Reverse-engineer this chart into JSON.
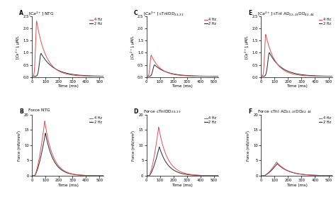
{
  "panels": {
    "A": {
      "label": "A",
      "title_ca": true,
      "title_suffix": " NTG",
      "title_full": "NTG",
      "ylabel_ca": true,
      "xlabel": "Time (ms)",
      "ylim": [
        0,
        2.5
      ],
      "xlim": [
        0,
        530
      ],
      "yticks": [
        0.0,
        0.5,
        1.0,
        1.5,
        2.0,
        2.5
      ],
      "xticks": [
        0,
        100,
        200,
        300,
        400,
        500
      ],
      "ca4hz_peak": 2.3,
      "ca4hz_peak_t": 35,
      "ca4hz_rise": 8,
      "ca4hz_decay": 70,
      "ca2hz_peak": 0.97,
      "ca2hz_peak_t": 68,
      "ca2hz_rise": 12,
      "ca2hz_decay": 95
    },
    "B": {
      "label": "B",
      "title_full": "Force NTG",
      "ylabel_force": true,
      "xlabel": "Time (ms)",
      "ylim": [
        0,
        20
      ],
      "xlim": [
        0,
        530
      ],
      "yticks": [
        0,
        5,
        10,
        15,
        20
      ],
      "xticks": [
        0,
        100,
        200,
        300,
        400,
        500
      ],
      "f4hz_peak": 18.0,
      "f4hz_peak_t": 95,
      "f4hz_rise": 55,
      "f4hz_decay": 60,
      "f2hz_peak": 14.0,
      "f2hz_peak_t": 100,
      "f2hz_rise": 55,
      "f2hz_decay": 60
    },
    "C": {
      "label": "C",
      "title_ca": true,
      "title_suffix": " cTnIDD",
      "title_sub": "22,23",
      "title_full": "cTnIDD",
      "ylabel_ca": true,
      "xlabel": "Time (ms)",
      "ylim": [
        0,
        2.5
      ],
      "xlim": [
        0,
        530
      ],
      "yticks": [
        0.0,
        0.5,
        1.0,
        1.5,
        2.0,
        2.5
      ],
      "xticks": [
        0,
        100,
        200,
        300,
        400,
        500
      ],
      "ca4hz_peak": 0.9,
      "ca4hz_peak_t": 35,
      "ca4hz_rise": 8,
      "ca4hz_decay": 70,
      "ca2hz_peak": 0.5,
      "ca2hz_peak_t": 60,
      "ca2hz_rise": 12,
      "ca2hz_decay": 90
    },
    "D": {
      "label": "D",
      "title_full": "Force cTnIDD",
      "title_sub": "22,23",
      "ylabel_force": true,
      "xlabel": "Time (ms)",
      "ylim": [
        0,
        20
      ],
      "xlim": [
        0,
        530
      ],
      "yticks": [
        0,
        5,
        10,
        15,
        20
      ],
      "xticks": [
        0,
        100,
        200,
        300,
        400,
        500
      ],
      "f4hz_peak": 16.0,
      "f4hz_peak_t": 90,
      "f4hz_rise": 55,
      "f4hz_decay": 65,
      "f2hz_peak": 9.5,
      "f2hz_peak_t": 95,
      "f2hz_rise": 55,
      "f2hz_decay": 65
    },
    "E": {
      "label": "E",
      "title_ca": true,
      "title_suffix": " cTnI AD",
      "title_sub1": "22,23",
      "title_mid": "DD",
      "title_sub2": "42,44",
      "title_full": "cTnI AD",
      "ylabel_ca": true,
      "xlabel": "Time (ms)",
      "ylim": [
        0,
        2.5
      ],
      "xlim": [
        0,
        530
      ],
      "yticks": [
        0.0,
        0.5,
        1.0,
        1.5,
        2.0,
        2.5
      ],
      "xticks": [
        0,
        100,
        200,
        300,
        400,
        500
      ],
      "ca4hz_peak": 1.75,
      "ca4hz_peak_t": 35,
      "ca4hz_rise": 8,
      "ca4hz_decay": 70,
      "ca2hz_peak": 1.0,
      "ca2hz_peak_t": 62,
      "ca2hz_rise": 12,
      "ca2hz_decay": 90
    },
    "F": {
      "label": "F",
      "title_full": "Force cTnI AD",
      "title_sub1": "22,23",
      "title_mid": "DD",
      "title_sub2": "42,44",
      "ylabel_force": true,
      "xlabel": "Time (ms)",
      "ylim": [
        0,
        20
      ],
      "xlim": [
        0,
        530
      ],
      "yticks": [
        0,
        5,
        10,
        15,
        20
      ],
      "xticks": [
        0,
        100,
        200,
        300,
        400,
        500
      ],
      "f4hz_peak": 4.5,
      "f4hz_peak_t": 115,
      "f4hz_rise": 65,
      "f4hz_decay": 85,
      "f2hz_peak": 4.0,
      "f2hz_peak_t": 120,
      "f2hz_rise": 65,
      "f2hz_decay": 85
    }
  },
  "color_4hz": "#e05050",
  "color_2hz": "#2a2a2a",
  "background": "#ffffff"
}
